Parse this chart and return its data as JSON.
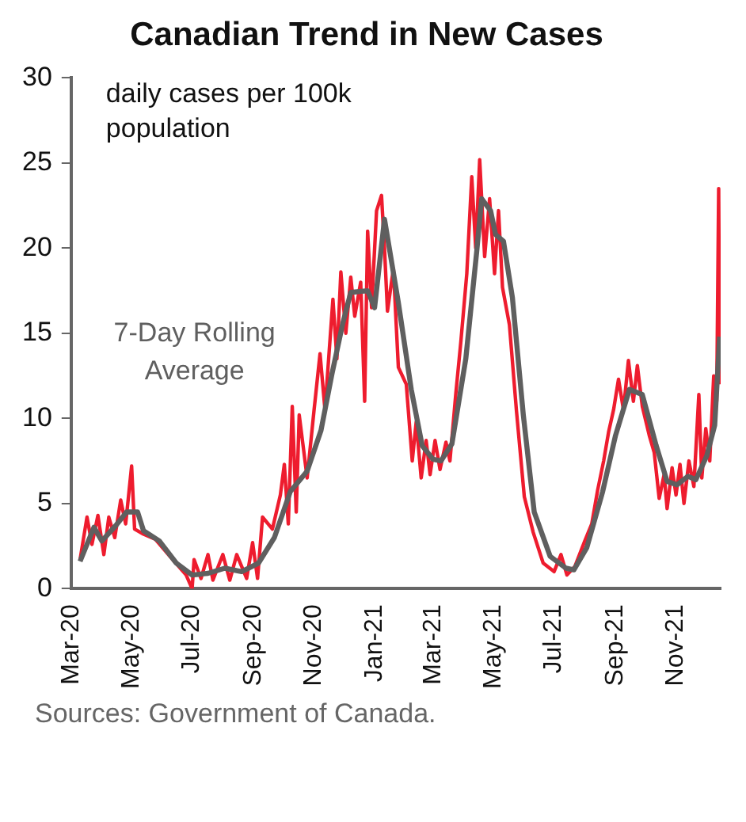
{
  "chart_data": {
    "type": "line",
    "title": "Canadian Trend in New Cases",
    "ylabel": "daily cases per 100k population",
    "annotations": [
      "Sources: Government of Canada."
    ],
    "xlim": [
      "2020-03-01",
      "2021-12-16"
    ],
    "xticks": [
      {
        "value": "2020-03-01",
        "label": "Mar-20"
      },
      {
        "value": "2020-05-01",
        "label": "May-20"
      },
      {
        "value": "2020-07-01",
        "label": "Jul-20"
      },
      {
        "value": "2020-09-01",
        "label": "Sep-20"
      },
      {
        "value": "2020-11-01",
        "label": "Nov-20"
      },
      {
        "value": "2021-01-01",
        "label": "Jan-21"
      },
      {
        "value": "2021-03-01",
        "label": "Mar-21"
      },
      {
        "value": "2021-05-01",
        "label": "May-21"
      },
      {
        "value": "2021-07-01",
        "label": "Jul-21"
      },
      {
        "value": "2021-09-01",
        "label": "Sep-21"
      },
      {
        "value": "2021-11-01",
        "label": "Nov-21"
      }
    ],
    "ylim": [
      0,
      30
    ],
    "yticks": [
      0,
      5,
      10,
      15,
      20,
      25,
      30
    ],
    "grid": false,
    "legend": false,
    "marker": "none",
    "line_style": "solid",
    "series": [
      {
        "color": "#ee1c2e",
        "x": [
          "2020-03-10",
          "2020-03-17",
          "2020-03-22",
          "2020-03-28",
          "2020-04-03",
          "2020-04-08",
          "2020-04-14",
          "2020-04-20",
          "2020-04-25",
          "2020-05-01",
          "2020-05-04",
          "2020-05-13",
          "2020-05-25",
          "2020-06-10",
          "2020-06-25",
          "2020-07-01",
          "2020-07-03",
          "2020-07-10",
          "2020-07-17",
          "2020-07-22",
          "2020-08-01",
          "2020-08-08",
          "2020-08-15",
          "2020-08-25",
          "2020-08-31",
          "2020-09-05",
          "2020-09-10",
          "2020-09-20",
          "2020-09-28",
          "2020-10-02",
          "2020-10-06",
          "2020-10-10",
          "2020-10-14",
          "2020-10-17",
          "2020-10-25",
          "2020-11-01",
          "2020-11-07",
          "2020-11-12",
          "2020-11-20",
          "2020-11-24",
          "2020-11-28",
          "2020-12-03",
          "2020-12-08",
          "2020-12-12",
          "2020-12-18",
          "2020-12-22",
          "2020-12-25",
          "2020-12-29",
          "2021-01-03",
          "2021-01-08",
          "2021-01-11",
          "2021-01-14",
          "2021-01-20",
          "2021-01-25",
          "2021-02-02",
          "2021-02-08",
          "2021-02-12",
          "2021-02-17",
          "2021-02-22",
          "2021-02-26",
          "2021-03-03",
          "2021-03-08",
          "2021-03-14",
          "2021-03-18",
          "2021-03-24",
          "2021-03-29",
          "2021-04-04",
          "2021-04-09",
          "2021-04-13",
          "2021-04-17",
          "2021-04-22",
          "2021-04-27",
          "2021-05-02",
          "2021-05-06",
          "2021-05-10",
          "2021-05-17",
          "2021-05-24",
          "2021-06-01",
          "2021-06-10",
          "2021-06-20",
          "2021-07-01",
          "2021-07-08",
          "2021-07-14",
          "2021-07-22",
          "2021-08-01",
          "2021-08-08",
          "2021-08-14",
          "2021-08-20",
          "2021-08-25",
          "2021-08-30",
          "2021-09-04",
          "2021-09-09",
          "2021-09-14",
          "2021-09-19",
          "2021-09-23",
          "2021-09-28",
          "2021-10-05",
          "2021-10-10",
          "2021-10-15",
          "2021-10-20",
          "2021-10-23",
          "2021-10-28",
          "2021-11-01",
          "2021-11-05",
          "2021-11-09",
          "2021-11-14",
          "2021-11-19",
          "2021-11-24",
          "2021-11-27",
          "2021-12-01",
          "2021-12-05",
          "2021-12-09",
          "2021-12-12",
          "2021-12-14",
          "2021-12-15"
        ],
        "values": [
          1.7,
          4.2,
          2.6,
          4.3,
          2.0,
          4.2,
          3.0,
          5.2,
          3.8,
          7.2,
          3.5,
          3.2,
          2.9,
          1.8,
          0.8,
          0.0,
          1.7,
          0.6,
          2.0,
          0.5,
          2.0,
          0.5,
          2.0,
          0.6,
          2.7,
          0.6,
          4.2,
          3.5,
          5.5,
          7.3,
          3.8,
          10.7,
          4.5,
          10.2,
          6.5,
          10.5,
          13.8,
          10.5,
          17.0,
          13.5,
          18.6,
          15.0,
          18.3,
          16.0,
          18.0,
          11.0,
          21.0,
          16.5,
          22.2,
          23.1,
          20.0,
          16.3,
          18.8,
          13.0,
          12.0,
          7.5,
          9.8,
          6.5,
          8.7,
          6.7,
          8.7,
          7.0,
          8.6,
          7.5,
          11.5,
          14.5,
          18.5,
          24.2,
          20.0,
          25.2,
          19.5,
          22.9,
          18.5,
          22.2,
          17.7,
          15.5,
          10.5,
          5.4,
          3.3,
          1.5,
          1.0,
          2.0,
          0.8,
          1.3,
          2.8,
          3.8,
          5.8,
          7.5,
          9.2,
          10.5,
          12.3,
          10.5,
          13.4,
          11.0,
          13.1,
          10.7,
          9.0,
          8.0,
          5.3,
          6.7,
          4.7,
          7.1,
          5.5,
          7.3,
          5.0,
          7.5,
          6.0,
          11.4,
          6.5,
          9.4,
          7.5,
          12.5,
          11.0,
          23.5,
          12.0
        ]
      },
      {
        "name": "7-Day Rolling Average",
        "color": "#5f5f5f",
        "x": [
          "2020-03-10",
          "2020-03-24",
          "2020-04-01",
          "2020-04-15",
          "2020-04-26",
          "2020-05-07",
          "2020-05-13",
          "2020-05-29",
          "2020-06-15",
          "2020-07-01",
          "2020-07-17",
          "2020-08-03",
          "2020-08-20",
          "2020-09-06",
          "2020-09-22",
          "2020-10-08",
          "2020-10-25",
          "2020-11-08",
          "2020-11-19",
          "2020-11-30",
          "2020-12-08",
          "2020-12-25",
          "2021-01-01",
          "2021-01-11",
          "2021-01-25",
          "2021-02-07",
          "2021-02-18",
          "2021-03-01",
          "2021-03-09",
          "2021-03-20",
          "2021-04-03",
          "2021-04-14",
          "2021-04-19",
          "2021-04-28",
          "2021-05-03",
          "2021-05-11",
          "2021-05-20",
          "2021-05-31",
          "2021-06-11",
          "2021-06-27",
          "2021-07-13",
          "2021-07-21",
          "2021-08-03",
          "2021-08-19",
          "2021-09-01",
          "2021-09-15",
          "2021-09-28",
          "2021-10-12",
          "2021-10-23",
          "2021-11-02",
          "2021-11-13",
          "2021-11-21",
          "2021-12-02",
          "2021-12-10",
          "2021-12-15"
        ],
        "values": [
          1.6,
          3.6,
          2.8,
          3.7,
          4.5,
          4.5,
          3.4,
          2.8,
          1.5,
          0.8,
          0.9,
          1.2,
          1.0,
          1.5,
          3.0,
          5.7,
          6.9,
          9.3,
          12.6,
          15.6,
          17.4,
          17.5,
          16.5,
          21.7,
          16.8,
          11.7,
          8.4,
          7.6,
          7.5,
          8.5,
          13.5,
          19.8,
          22.9,
          22.2,
          20.8,
          20.4,
          17.1,
          10.2,
          4.5,
          1.9,
          1.2,
          1.1,
          2.4,
          5.7,
          9.0,
          11.7,
          11.4,
          8.4,
          6.3,
          6.1,
          6.6,
          6.4,
          7.8,
          9.6,
          14.8
        ]
      }
    ]
  }
}
